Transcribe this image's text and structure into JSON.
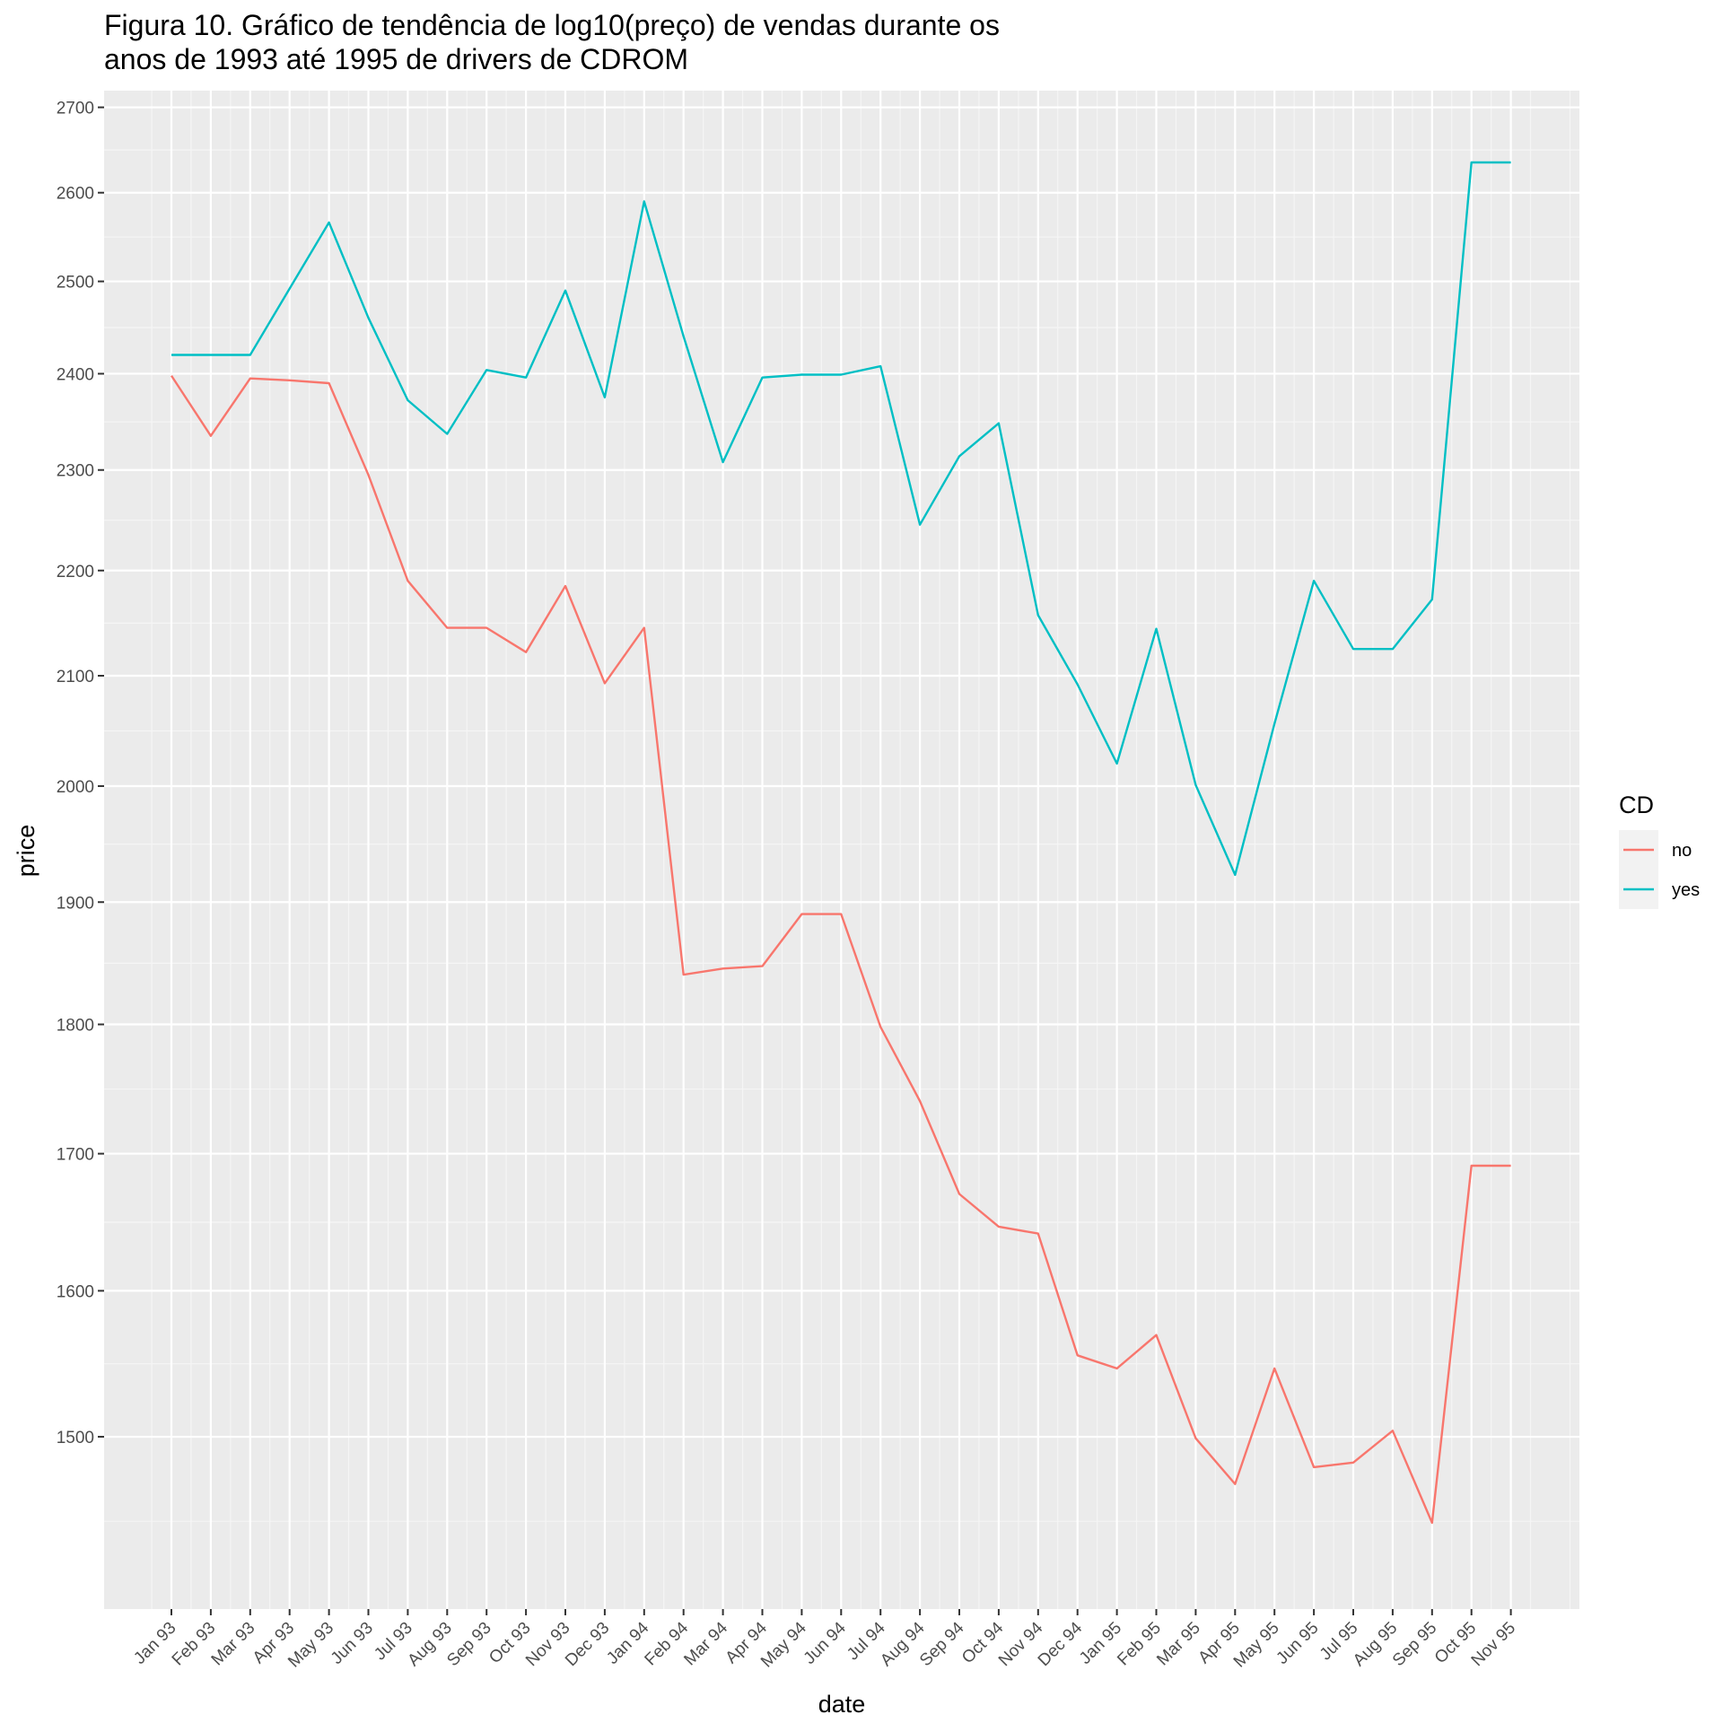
{
  "chart_data": {
    "type": "line",
    "title": [
      "Figura 10. Gráfico de tendência de log10(preço) de vendas durante os",
      "anos de 1993 até 1995 de drivers de CDROM"
    ],
    "xlabel": "date",
    "ylabel": "price",
    "y_scale": "log10",
    "y_ticks": [
      1500,
      1600,
      1700,
      1800,
      1900,
      2000,
      2100,
      2200,
      2300,
      2400,
      2500,
      2600,
      2700
    ],
    "ylim": [
      1390,
      2720
    ],
    "categories": [
      "Jan 93",
      "Feb 93",
      "Mar 93",
      "Apr 93",
      "May 93",
      "Jun 93",
      "Jul 93",
      "Aug 93",
      "Sep 93",
      "Oct 93",
      "Nov 93",
      "Dec 93",
      "Jan 94",
      "Feb 94",
      "Mar 94",
      "Apr 94",
      "May 94",
      "Jun 94",
      "Jul 94",
      "Aug 94",
      "Sep 94",
      "Oct 94",
      "Nov 94",
      "Dec 94",
      "Jan 95",
      "Feb 95",
      "Mar 95",
      "Apr 95",
      "May 95",
      "Jun 95",
      "Jul 95",
      "Aug 95",
      "Sep 95",
      "Oct 95",
      "Nov 95"
    ],
    "legend": {
      "title": "CD",
      "placement": "right"
    },
    "grid": true,
    "series": [
      {
        "name": "no",
        "color": "#F8766D",
        "values": [
          2398,
          2335,
          2395,
          2393,
          2390,
          2295,
          2190,
          2145,
          2145,
          2122,
          2185,
          2093,
          2145,
          1840,
          1845,
          1847,
          1890,
          1890,
          1798,
          1740,
          1670,
          1646,
          1641,
          1555,
          1546,
          1569,
          1499,
          1469,
          1546,
          1480,
          1483,
          1504,
          1444,
          1691,
          1691
        ]
      },
      {
        "name": "yes",
        "color": "#00BFC4",
        "values": [
          2420,
          2420,
          2420,
          2492,
          2566,
          2460,
          2372,
          2337,
          2404,
          2396,
          2490,
          2375,
          2590,
          2440,
          2308,
          2396,
          2399,
          2399,
          2408,
          2245,
          2314,
          2348,
          2157,
          2092,
          2020,
          2144,
          2001,
          1923,
          2056,
          2190,
          2125,
          2125,
          2172,
          2635,
          2635
        ]
      }
    ]
  }
}
